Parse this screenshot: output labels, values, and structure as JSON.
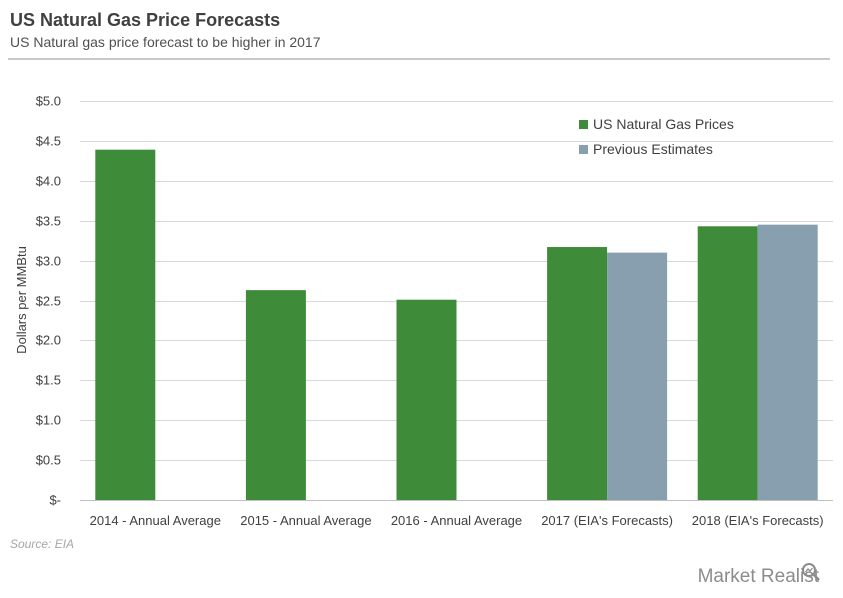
{
  "header": {
    "title": "US Natural Gas Price Forecasts",
    "subtitle": "US Natural gas price forecast to be higher in 2017"
  },
  "footer": {
    "source": "Source: EIA",
    "brand": "Market Realist"
  },
  "chart_data": {
    "type": "bar",
    "ylabel": "Dollars per MMBtu",
    "ylim": [
      0,
      5.0
    ],
    "yticks": [
      {
        "value": 0,
        "label": "$-"
      },
      {
        "value": 0.5,
        "label": "$0.5"
      },
      {
        "value": 1.0,
        "label": "$1.0"
      },
      {
        "value": 1.5,
        "label": "$1.5"
      },
      {
        "value": 2.0,
        "label": "$2.0"
      },
      {
        "value": 2.5,
        "label": "$2.5"
      },
      {
        "value": 3.0,
        "label": "$3.0"
      },
      {
        "value": 3.5,
        "label": "$3.5"
      },
      {
        "value": 4.0,
        "label": "$4.0"
      },
      {
        "value": 4.5,
        "label": "$4.5"
      },
      {
        "value": 5.0,
        "label": "$5.0"
      }
    ],
    "grid": true,
    "legend_position": "top-right",
    "categories": [
      "2014 - Annual Average",
      "2015 - Annual Average",
      "2016 - Annual Average",
      "2017 (EIA's Forecasts)",
      "2018 (EIA's Forecasts)"
    ],
    "series": [
      {
        "name": "US Natural Gas Prices",
        "color": "#3e8b3a",
        "values": [
          4.39,
          2.63,
          2.51,
          3.17,
          3.43
        ]
      },
      {
        "name": "Previous Estimates",
        "color": "#879fae",
        "values": [
          null,
          null,
          null,
          3.1,
          3.45
        ]
      }
    ]
  }
}
